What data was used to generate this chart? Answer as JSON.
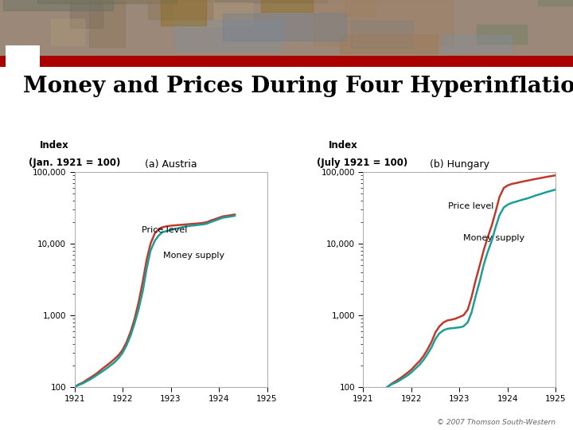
{
  "title": "Money and Prices During Four Hyperinflations",
  "title_fontsize": 20,
  "title_font": "serif",
  "bg_color": "#ffffff",
  "austria_title": "(a) Austria",
  "austria_ylabel_line1": "Index",
  "austria_ylabel_line2": "(Jan. 1921 = 100)",
  "austria_price_label": "Price level",
  "austria_money_label": "Money supply",
  "hungary_title": "(b) Hungary",
  "hungary_ylabel_line1": "Index",
  "hungary_ylabel_line2": "(July 1921 = 100)",
  "hungary_price_label": "Price level",
  "hungary_money_label": "Money supply",
  "price_color": "#c0392b",
  "money_color": "#1a9e96",
  "line_width": 1.8,
  "austria_x": [
    1921.0,
    1921.08,
    1921.17,
    1921.25,
    1921.33,
    1921.42,
    1921.5,
    1921.58,
    1921.67,
    1921.75,
    1921.83,
    1921.92,
    1922.0,
    1922.08,
    1922.17,
    1922.25,
    1922.33,
    1922.42,
    1922.5,
    1922.58,
    1922.67,
    1922.75,
    1922.83,
    1922.92,
    1923.0,
    1923.08,
    1923.17,
    1923.25,
    1923.33,
    1923.42,
    1923.5,
    1923.58,
    1923.67,
    1923.75,
    1923.83,
    1923.92,
    1924.0,
    1924.08,
    1924.17,
    1924.25,
    1924.33
  ],
  "austria_price": [
    100,
    108,
    115,
    125,
    135,
    148,
    162,
    180,
    200,
    220,
    245,
    280,
    330,
    420,
    600,
    900,
    1500,
    3000,
    6000,
    10000,
    14000,
    16000,
    17000,
    17500,
    17800,
    18000,
    18200,
    18400,
    18600,
    18800,
    19000,
    19200,
    19500,
    20000,
    21000,
    22000,
    23000,
    24000,
    24500,
    25000,
    25500
  ],
  "austria_money": [
    100,
    106,
    112,
    120,
    128,
    140,
    152,
    165,
    182,
    200,
    220,
    255,
    300,
    380,
    530,
    780,
    1200,
    2200,
    4500,
    8000,
    11000,
    13000,
    14500,
    15000,
    15500,
    16000,
    16500,
    17000,
    17500,
    17800,
    18000,
    18300,
    18600,
    19000,
    20000,
    21000,
    22000,
    23000,
    23500,
    24000,
    24500
  ],
  "hungary_x": [
    1921.5,
    1921.58,
    1921.67,
    1921.75,
    1921.83,
    1921.92,
    1922.0,
    1922.08,
    1922.17,
    1922.25,
    1922.33,
    1922.42,
    1922.5,
    1922.58,
    1922.67,
    1922.75,
    1922.83,
    1922.92,
    1923.0,
    1923.08,
    1923.17,
    1923.25,
    1923.33,
    1923.42,
    1923.5,
    1923.58,
    1923.67,
    1923.75,
    1923.83,
    1923.92,
    1924.0,
    1924.08,
    1924.17,
    1924.25,
    1924.33,
    1924.42,
    1924.5,
    1924.58,
    1924.67,
    1924.75,
    1924.83,
    1924.92,
    1925.0
  ],
  "hungary_price": [
    100,
    110,
    120,
    130,
    142,
    158,
    175,
    200,
    230,
    270,
    330,
    430,
    580,
    700,
    800,
    850,
    870,
    900,
    950,
    1000,
    1200,
    1800,
    3000,
    5000,
    8000,
    12000,
    18000,
    28000,
    45000,
    60000,
    65000,
    68000,
    70000,
    72000,
    74000,
    76000,
    78000,
    80000,
    82000,
    84000,
    86000,
    88000,
    90000
  ],
  "hungary_money": [
    100,
    108,
    115,
    123,
    133,
    145,
    160,
    180,
    205,
    238,
    285,
    360,
    470,
    560,
    620,
    650,
    660,
    670,
    680,
    700,
    800,
    1100,
    1800,
    3000,
    5000,
    7500,
    11000,
    17000,
    25000,
    32000,
    35000,
    37000,
    38500,
    40000,
    41500,
    43000,
    45000,
    47000,
    49000,
    51000,
    53000,
    55000,
    57000
  ],
  "xlim": [
    1921.0,
    1925.0
  ],
  "xticks": [
    1921,
    1922,
    1923,
    1924,
    1925
  ],
  "ylim_log": [
    100,
    100000
  ],
  "yticks_log": [
    100,
    1000,
    10000,
    100000
  ],
  "ytick_labels": [
    "100",
    "1,000",
    "10,000",
    "100,000"
  ],
  "subtitle_fontsize": 9,
  "label_fontsize": 8,
  "tick_fontsize": 7.5,
  "copyright_text": "© 2007 Thomson South-Western",
  "photo_colors": [
    "#8B7355",
    "#A0896B",
    "#7B6E5E",
    "#9B8878",
    "#B5A090",
    "#6B7B5E",
    "#8B9B7E"
  ],
  "red_bar_color": "#aa0000",
  "chart_border_color": "#aaaaaa"
}
